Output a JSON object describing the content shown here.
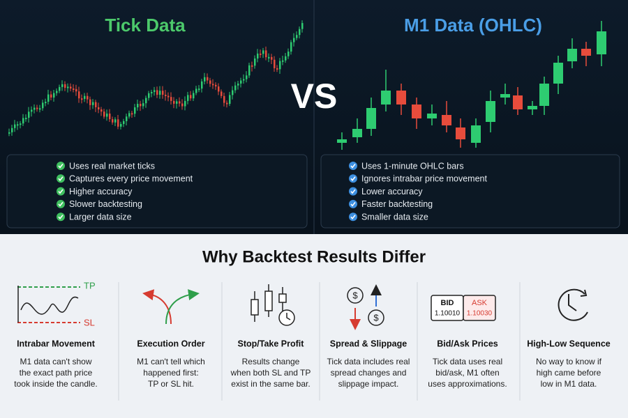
{
  "left_panel": {
    "title": "Tick Data",
    "features": [
      "Uses real market ticks",
      "Captures every price movement",
      "Higher accuracy",
      "Slower backtesting",
      "Larger data size"
    ]
  },
  "vs": "VS",
  "right_panel": {
    "title": "M1 Data (OHLC)",
    "features": [
      "Uses 1-minute OHLC bars",
      "Ignores intrabar price movement",
      "Lower accuracy",
      "Faster backtesting",
      "Smaller data size"
    ]
  },
  "section": {
    "title": "Why Backtest Results Differ",
    "items": [
      {
        "title": "Intrabar Movement",
        "text": [
          "M1 data can't show",
          "the exact path price",
          "took inside the candle."
        ],
        "labels": [
          "TP",
          "SL"
        ]
      },
      {
        "title": "Execution Order",
        "text": [
          "M1 can't tell which",
          "happened first:",
          "TP or SL hit."
        ]
      },
      {
        "title": "Stop/Take Profit",
        "text": [
          "Results change",
          "when both SL and TP",
          "exist in the same bar."
        ]
      },
      {
        "title": "Spread & Slippage",
        "text": [
          "Tick data includes real",
          "spread changes and",
          "slippage impact."
        ],
        "labels": [
          "$",
          "$"
        ]
      },
      {
        "title": "Bid/Ask Prices",
        "text": [
          "Tick data uses real",
          "bid/ask, M1 often",
          "uses approximations."
        ],
        "labels": [
          "BID",
          "1.10010",
          "ASK",
          "1.10030"
        ]
      },
      {
        "title": "High-Low Sequence",
        "text": [
          "No way to know if",
          "high came before",
          "low in M1 data."
        ]
      }
    ]
  }
}
